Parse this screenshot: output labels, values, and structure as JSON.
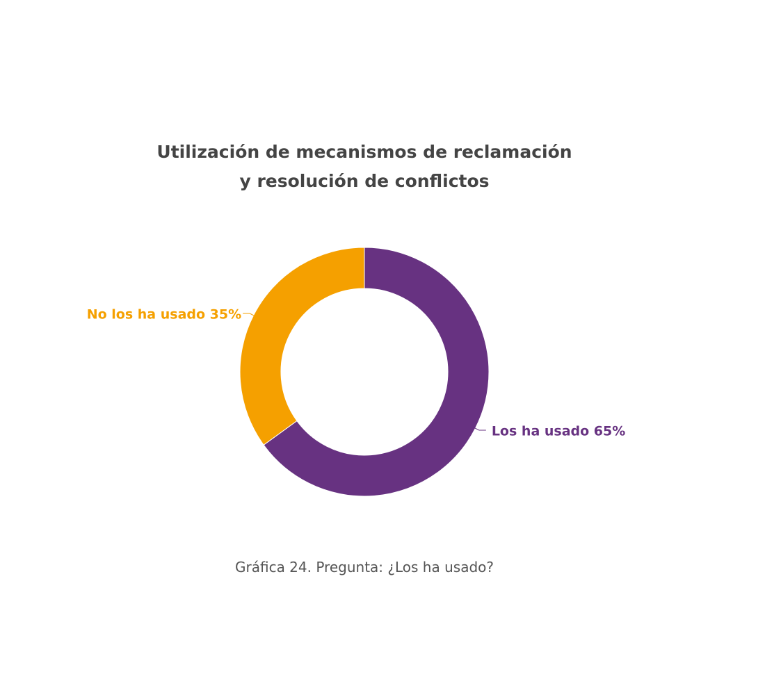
{
  "chart_data": {
    "type": "pie",
    "title_lines": [
      "Utilización de mecanismos de reclamación",
      "y resolución de conflictos"
    ],
    "slices": [
      {
        "label": "Los ha usado 65%",
        "value": 65,
        "color": "#673281"
      },
      {
        "label": "No los ha usado 35%",
        "value": 35,
        "color": "#F5A000"
      }
    ],
    "donut": true,
    "legend": "none"
  },
  "caption": "Gráfica 24. Pregunta: ¿Los ha usado?"
}
